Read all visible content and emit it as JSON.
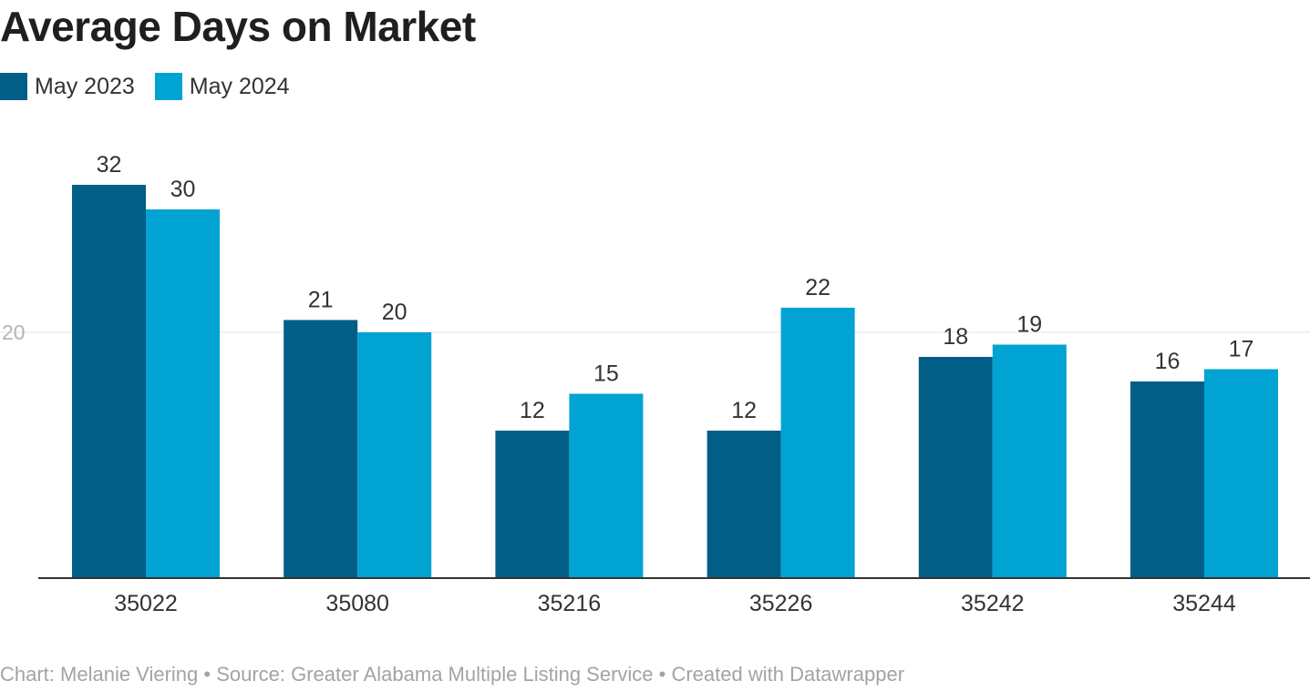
{
  "title": "Average Days on Market",
  "legend": [
    {
      "label": "May 2023",
      "color": "#005e87"
    },
    {
      "label": "May 2024",
      "color": "#00a3d1"
    }
  ],
  "footer": "Chart: Melanie Viering • Source: Greater Alabama Multiple Listing Service • Created with Datawrapper",
  "chart_data": {
    "type": "bar",
    "title": "Average Days on Market",
    "xlabel": "",
    "ylabel": "",
    "categories": [
      "35022",
      "35080",
      "35216",
      "35226",
      "35242",
      "35244"
    ],
    "series": [
      {
        "name": "May 2023",
        "color": "#005e87",
        "values": [
          32,
          21,
          12,
          12,
          18,
          16
        ]
      },
      {
        "name": "May 2024",
        "color": "#00a3d1",
        "values": [
          30,
          20,
          15,
          22,
          19,
          17
        ]
      }
    ],
    "ylim": [
      0,
      35
    ],
    "yticks": [
      20
    ],
    "grid": true,
    "legend_position": "top-left",
    "data_labels": true
  }
}
